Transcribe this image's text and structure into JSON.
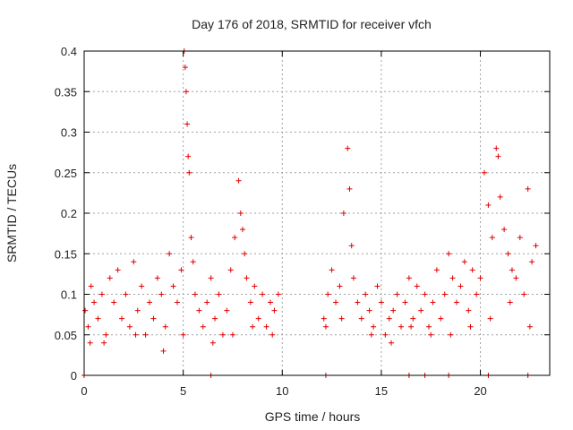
{
  "chart_data": {
    "type": "scatter",
    "title": "Day 176 of 2018, SRMTID for receiver vfch",
    "xlabel": "GPS time / hours",
    "ylabel": "SRMTID / TECUs",
    "xlim": [
      0,
      23.5
    ],
    "ylim": [
      0,
      0.4
    ],
    "xticks": [
      0,
      5,
      10,
      15,
      20
    ],
    "xtick_labels": [
      "0",
      "5",
      "10",
      "15",
      "20"
    ],
    "yticks": [
      0,
      0.05,
      0.1,
      0.15,
      0.2,
      0.25,
      0.3,
      0.35,
      0.4
    ],
    "ytick_labels": [
      "0",
      "0.05",
      "0.1",
      "0.15",
      "0.2",
      "0.25",
      "0.3",
      "0.35",
      "0.4"
    ],
    "grid": true,
    "marker": "plus",
    "series_color": "#e00000",
    "series": [
      {
        "name": "SRMTID",
        "x": [
          0.05,
          0.2,
          0.35,
          0.5,
          0.7,
          0.9,
          1.1,
          1.3,
          1.5,
          1.7,
          1.9,
          2.1,
          2.3,
          2.5,
          2.7,
          2.9,
          3.1,
          3.3,
          3.5,
          3.7,
          3.9,
          4.1,
          4.3,
          4.5,
          4.7,
          4.9,
          5.05,
          5.1,
          5.15,
          5.2,
          5.25,
          5.3,
          5.4,
          5.5,
          5.6,
          5.8,
          6.0,
          6.2,
          6.4,
          6.6,
          6.8,
          7.0,
          7.2,
          7.4,
          7.6,
          7.8,
          7.9,
          8.0,
          8.1,
          8.2,
          8.4,
          8.6,
          8.8,
          9.0,
          9.2,
          9.4,
          9.6,
          9.8,
          12.1,
          12.3,
          12.5,
          12.7,
          12.9,
          13.1,
          13.3,
          13.4,
          13.5,
          13.6,
          13.8,
          14.0,
          14.2,
          14.4,
          14.6,
          14.8,
          15.0,
          15.2,
          15.4,
          15.6,
          15.8,
          16.0,
          16.2,
          16.4,
          16.6,
          16.8,
          17.0,
          17.2,
          17.4,
          17.6,
          17.8,
          18.0,
          18.2,
          18.4,
          18.6,
          18.8,
          19.0,
          19.2,
          19.4,
          19.6,
          19.8,
          20.0,
          20.2,
          20.4,
          20.6,
          20.8,
          20.9,
          21.0,
          21.2,
          21.4,
          21.6,
          21.8,
          22.0,
          22.2,
          22.4,
          22.6,
          22.8,
          0.3,
          1.0,
          2.6,
          4.0,
          5.0,
          6.5,
          7.5,
          8.5,
          9.5,
          12.2,
          13.0,
          14.5,
          15.5,
          16.5,
          17.5,
          18.5,
          19.5,
          20.5,
          21.5,
          22.5,
          0.0,
          6.4,
          12.2,
          16.4,
          17.2,
          18.4,
          20.4,
          22.4
        ],
        "y": [
          0.08,
          0.06,
          0.11,
          0.09,
          0.07,
          0.1,
          0.05,
          0.12,
          0.09,
          0.13,
          0.07,
          0.1,
          0.06,
          0.14,
          0.08,
          0.11,
          0.05,
          0.09,
          0.07,
          0.12,
          0.1,
          0.06,
          0.15,
          0.11,
          0.09,
          0.13,
          0.4,
          0.38,
          0.35,
          0.31,
          0.27,
          0.25,
          0.17,
          0.14,
          0.1,
          0.08,
          0.06,
          0.09,
          0.12,
          0.07,
          0.1,
          0.05,
          0.08,
          0.13,
          0.17,
          0.24,
          0.2,
          0.18,
          0.15,
          0.12,
          0.09,
          0.11,
          0.07,
          0.1,
          0.06,
          0.09,
          0.08,
          0.1,
          0.07,
          0.1,
          0.13,
          0.09,
          0.11,
          0.2,
          0.28,
          0.23,
          0.16,
          0.12,
          0.09,
          0.07,
          0.1,
          0.08,
          0.06,
          0.11,
          0.09,
          0.05,
          0.07,
          0.08,
          0.1,
          0.06,
          0.09,
          0.12,
          0.07,
          0.11,
          0.08,
          0.1,
          0.06,
          0.09,
          0.13,
          0.07,
          0.1,
          0.15,
          0.12,
          0.09,
          0.11,
          0.14,
          0.08,
          0.13,
          0.1,
          0.12,
          0.25,
          0.21,
          0.17,
          0.28,
          0.27,
          0.22,
          0.18,
          0.15,
          0.13,
          0.12,
          0.17,
          0.1,
          0.23,
          0.14,
          0.16,
          0.04,
          0.04,
          0.05,
          0.03,
          0.05,
          0.04,
          0.05,
          0.06,
          0.05,
          0.06,
          0.07,
          0.05,
          0.04,
          0.06,
          0.05,
          0.05,
          0.06,
          0.07,
          0.09,
          0.06,
          0.0,
          0.0,
          0.0,
          0.0,
          0.0,
          0.0,
          0.0,
          0.0
        ]
      }
    ]
  }
}
